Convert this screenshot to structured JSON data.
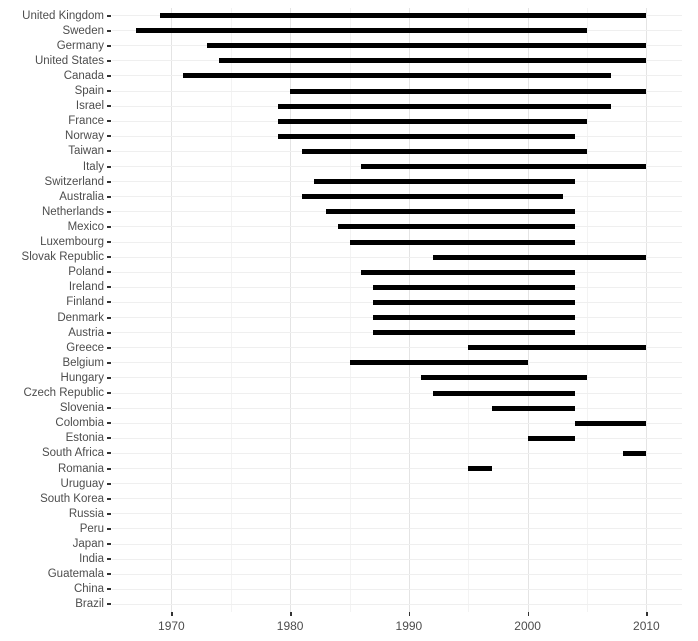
{
  "chart_data": {
    "type": "bar",
    "subtype": "horizontal-range",
    "title": "",
    "xlabel": "",
    "ylabel": "",
    "xlim": [
      1965,
      2013
    ],
    "x_ticks": [
      {
        "value": 1970,
        "label": "1970"
      },
      {
        "value": 1980,
        "label": "1980"
      },
      {
        "value": 1990,
        "label": "1990"
      },
      {
        "value": 2000,
        "label": "2000"
      },
      {
        "value": 2010,
        "label": "2010"
      }
    ],
    "x_minor_ticks": [
      1975,
      1985,
      1995,
      2005
    ],
    "grid": true,
    "legend": false,
    "series": [
      {
        "label": "United Kingdom",
        "start": 1969,
        "end": 2010
      },
      {
        "label": "Sweden",
        "start": 1967,
        "end": 2005
      },
      {
        "label": "Germany",
        "start": 1973,
        "end": 2010
      },
      {
        "label": "United States",
        "start": 1974,
        "end": 2010
      },
      {
        "label": "Canada",
        "start": 1971,
        "end": 2007
      },
      {
        "label": "Spain",
        "start": 1980,
        "end": 2010
      },
      {
        "label": "Israel",
        "start": 1979,
        "end": 2007
      },
      {
        "label": "France",
        "start": 1979,
        "end": 2005
      },
      {
        "label": "Norway",
        "start": 1979,
        "end": 2004
      },
      {
        "label": "Taiwan",
        "start": 1981,
        "end": 2005
      },
      {
        "label": "Italy",
        "start": 1986,
        "end": 2010
      },
      {
        "label": "Switzerland",
        "start": 1982,
        "end": 2004
      },
      {
        "label": "Australia",
        "start": 1981,
        "end": 2003
      },
      {
        "label": "Netherlands",
        "start": 1983,
        "end": 2004
      },
      {
        "label": "Mexico",
        "start": 1984,
        "end": 2004
      },
      {
        "label": "Luxembourg",
        "start": 1985,
        "end": 2004
      },
      {
        "label": "Slovak Republic",
        "start": 1992,
        "end": 2010
      },
      {
        "label": "Poland",
        "start": 1986,
        "end": 2004
      },
      {
        "label": "Ireland",
        "start": 1987,
        "end": 2004
      },
      {
        "label": "Finland",
        "start": 1987,
        "end": 2004
      },
      {
        "label": "Denmark",
        "start": 1987,
        "end": 2004
      },
      {
        "label": "Austria",
        "start": 1987,
        "end": 2004
      },
      {
        "label": "Greece",
        "start": 1995,
        "end": 2010
      },
      {
        "label": "Belgium",
        "start": 1985,
        "end": 2000
      },
      {
        "label": "Hungary",
        "start": 1991,
        "end": 2005
      },
      {
        "label": "Czech Republic",
        "start": 1992,
        "end": 2004
      },
      {
        "label": "Slovenia",
        "start": 1997,
        "end": 2004
      },
      {
        "label": "Colombia",
        "start": 2004,
        "end": 2010
      },
      {
        "label": "Estonia",
        "start": 2000,
        "end": 2004
      },
      {
        "label": "South Africa",
        "start": 2008,
        "end": 2010
      },
      {
        "label": "Romania",
        "start": 1995,
        "end": 1997
      },
      {
        "label": "Uruguay",
        "start": null,
        "end": null
      },
      {
        "label": "South Korea",
        "start": null,
        "end": null
      },
      {
        "label": "Russia",
        "start": null,
        "end": null
      },
      {
        "label": "Peru",
        "start": null,
        "end": null
      },
      {
        "label": "Japan",
        "start": null,
        "end": null
      },
      {
        "label": "India",
        "start": null,
        "end": null
      },
      {
        "label": "Guatemala",
        "start": null,
        "end": null
      },
      {
        "label": "China",
        "start": null,
        "end": null
      },
      {
        "label": "Brazil",
        "start": null,
        "end": null
      }
    ]
  },
  "colors": {
    "bar": "#000000",
    "grid_major": "#e4e4e4",
    "grid_minor": "#f3f3f3",
    "row_grid": "#efefef",
    "tick": "#333333",
    "axis_text": "#4d4d4d",
    "background": "#ffffff"
  }
}
